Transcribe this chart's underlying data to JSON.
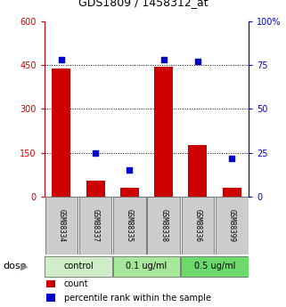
{
  "title": "GDS1809 / 1458312_at",
  "samples": [
    "GSM88334",
    "GSM88337",
    "GSM88335",
    "GSM88338",
    "GSM88336",
    "GSM88399"
  ],
  "counts": [
    440,
    55,
    30,
    445,
    175,
    30
  ],
  "percentiles": [
    78,
    25,
    15,
    78,
    77,
    22
  ],
  "groups": [
    {
      "label": "control",
      "color": "#d0edca",
      "n": 2
    },
    {
      "label": "0.1 ug/ml",
      "color": "#a8e89c",
      "n": 2
    },
    {
      "label": "0.5 ug/ml",
      "color": "#6dd96d",
      "n": 2
    }
  ],
  "ylim_left": [
    0,
    600
  ],
  "ylim_right": [
    0,
    100
  ],
  "yticks_left": [
    0,
    150,
    300,
    450,
    600
  ],
  "yticks_right": [
    0,
    25,
    50,
    75,
    100
  ],
  "ytick_labels_left": [
    "0",
    "150",
    "300",
    "450",
    "600"
  ],
  "ytick_labels_right": [
    "0",
    "25",
    "50",
    "75",
    "100%"
  ],
  "hlines": [
    150,
    300,
    450
  ],
  "bar_color": "#cc0000",
  "dot_color": "#0000cc",
  "bar_width": 0.55,
  "left_axis_color": "#cc0000",
  "right_axis_color": "#0000cc",
  "sample_box_color": "#cccccc",
  "dose_label": "dose",
  "legend_count_label": "count",
  "legend_percentile_label": "percentile rank within the sample",
  "title_fontsize": 9,
  "tick_fontsize": 7,
  "sample_fontsize": 5.5,
  "dose_fontsize": 7,
  "legend_fontsize": 7
}
